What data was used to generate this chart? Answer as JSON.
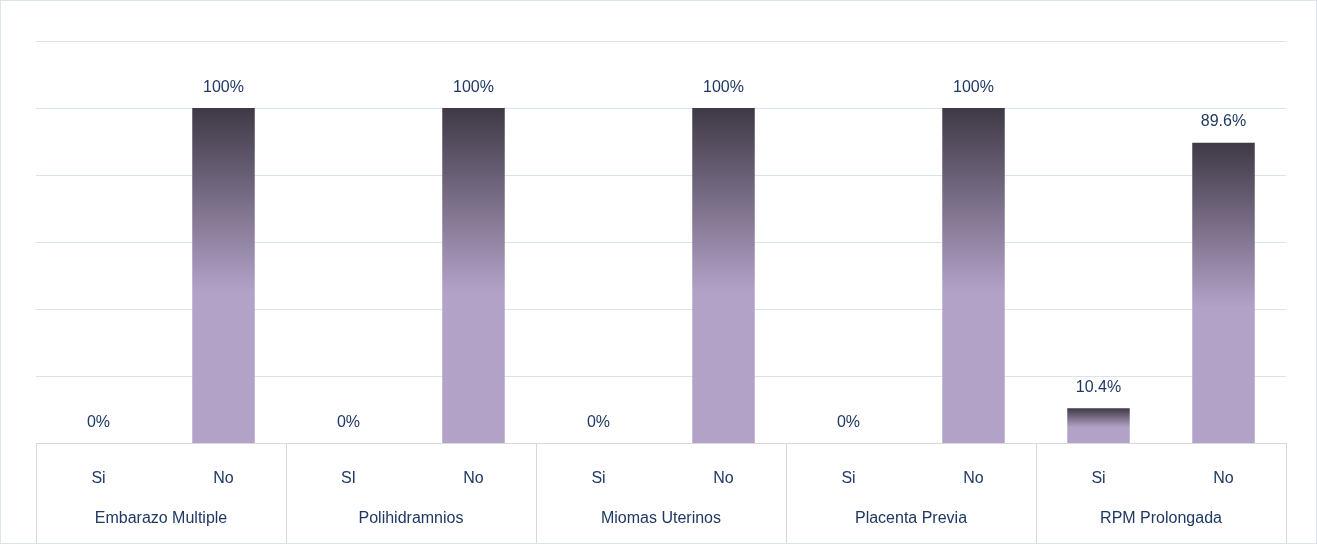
{
  "chart_data": {
    "type": "bar",
    "categories": [
      "Si",
      "No",
      "SI",
      "No",
      "Si",
      "No",
      "Si",
      "No",
      "Si",
      "No"
    ],
    "values": [
      0,
      100,
      0,
      100,
      0,
      100,
      0,
      100,
      10.4,
      89.6
    ],
    "value_labels": [
      "0%",
      "100%",
      "0%",
      "100%",
      "0%",
      "100%",
      "0%",
      "100%",
      "10.4%",
      "89.6%"
    ],
    "color": "#b3a2c8",
    "annotations": [
      "Embarazo Multiple",
      "Polihidramnios",
      "Miomas Uterinos",
      "Placenta Previa",
      "RPM Prolongada"
    ],
    "ylim": [
      0,
      120
    ],
    "yticks": [
      {
        "value": 0,
        "label": null
      },
      {
        "value": 20,
        "label": null
      },
      {
        "value": 40,
        "label": null
      },
      {
        "value": 60,
        "label": null
      },
      {
        "value": 80,
        "label": null
      },
      {
        "value": 100,
        "label": null
      },
      {
        "value": 120,
        "label": null
      }
    ],
    "tick_labels": "x",
    "grid": "y"
  }
}
